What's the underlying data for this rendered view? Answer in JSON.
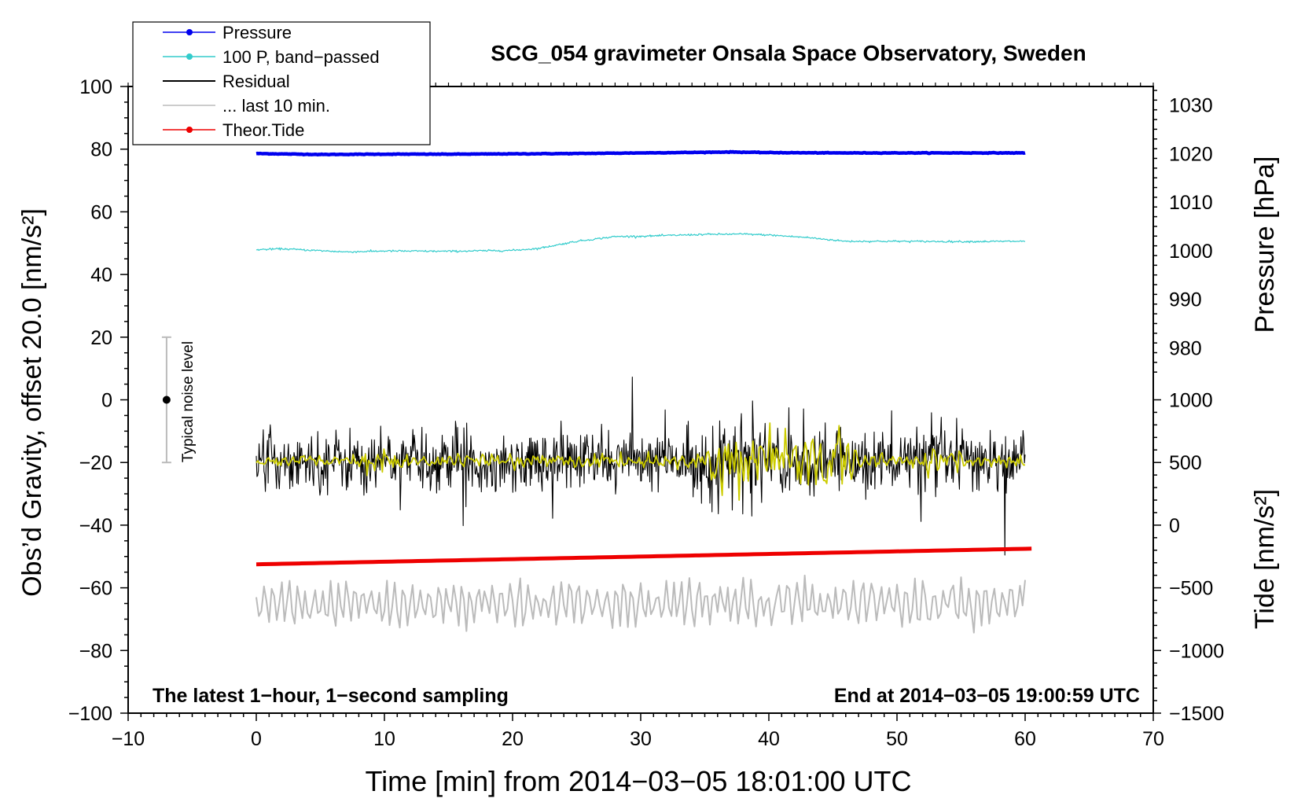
{
  "chart_data": {
    "type": "line",
    "title": "SCG_054 gravimeter Onsala Space Observatory, Sweden",
    "xlabel": "Time [min] from 2014−03−05 18:01:00 UTC",
    "ylabel_left": "Obs’d Gravity, offset 20.0 [nm/s²]",
    "ylabel_pressure": "Pressure [hPa]",
    "ylabel_tide": "Tide [nm/s²]",
    "xlim": [
      -10,
      70
    ],
    "ylim_left": [
      -100,
      100
    ],
    "x_ticks": [
      "−10",
      "0",
      "10",
      "20",
      "30",
      "40",
      "50",
      "60",
      "70"
    ],
    "x_tick_values": [
      -10,
      0,
      10,
      20,
      30,
      40,
      50,
      60,
      70
    ],
    "y_left_ticks": [
      "100",
      "80",
      "60",
      "40",
      "20",
      "0",
      "−20",
      "−40",
      "−60",
      "−80",
      "−100"
    ],
    "y_left_tick_values": [
      100,
      80,
      60,
      40,
      20,
      0,
      -20,
      -40,
      -60,
      -80,
      -100
    ],
    "pressure_ticks": [
      "1030",
      "1020",
      "1010",
      "1000",
      "990",
      "980"
    ],
    "pressure_tick_values": [
      1030,
      1020,
      1010,
      1000,
      990,
      980
    ],
    "pressure_axis": {
      "hpa_ref": 1020,
      "grav_ref": 78.6,
      "grav_per_hpa": 1.55
    },
    "tide_ticks": [
      "1000",
      "500",
      "0",
      "−500",
      "−1000",
      "−1500"
    ],
    "tide_tick_values": [
      1000,
      500,
      0,
      -500,
      -1000,
      -1500
    ],
    "tide_axis": {
      "tide_ref": -1500,
      "grav_ref": -100,
      "grav_per_unit": 0.04
    },
    "annotation_left": "The latest 1−hour, 1−second sampling",
    "annotation_right": "End at 2014−03−05 19:00:59 UTC",
    "noise_label": "Typical noise level",
    "noise_bar": {
      "x": -7,
      "center": 0,
      "half_range": 20
    },
    "legend": [
      {
        "label": "Pressure",
        "color": "#0000ee",
        "marker": true
      },
      {
        "label": "100 P, band−passed",
        "color": "#33cccc",
        "marker": true
      },
      {
        "label": "Residual",
        "color": "#000000",
        "marker": false
      },
      {
        "label": "... last 10 min.",
        "color": "#bbbbbb",
        "marker": false
      },
      {
        "label": "Theor.Tide",
        "color": "#ee0000",
        "marker": true
      }
    ],
    "series": [
      {
        "name": "Pressure",
        "color": "#0000ee",
        "offset_y": 78.7,
        "x": [
          0,
          5,
          10,
          15,
          20,
          25,
          30,
          35,
          37,
          40,
          45,
          50,
          55,
          60
        ],
        "y": [
          78.6,
          78.3,
          78.4,
          78.4,
          78.5,
          78.6,
          78.8,
          79.0,
          79.1,
          78.9,
          78.8,
          78.8,
          78.8,
          78.8
        ]
      },
      {
        "name": "100 P, band−passed",
        "color": "#33cccc",
        "offset_y": 48.0,
        "x": [
          0,
          2,
          5,
          7,
          10,
          15,
          20,
          22,
          25,
          28,
          30,
          35,
          38,
          40,
          43,
          46,
          50,
          55,
          60
        ],
        "y": [
          47.9,
          48.2,
          47.6,
          47.2,
          47.5,
          47.4,
          47.7,
          48.3,
          50.6,
          52.1,
          52.2,
          52.8,
          52.9,
          52.6,
          51.8,
          50.6,
          50.6,
          50.5,
          50.6
        ]
      },
      {
        "name": "Residual",
        "color": "#000000",
        "center": -19.5,
        "amplitude": 6.5,
        "points": 1100
      },
      {
        "name": "Residual, smoothed",
        "color": "#cccc00",
        "center": -19.5,
        "amplitude": 1.5
      },
      {
        "name": "... last 10 min.",
        "color": "#bbbbbb",
        "center": -65,
        "amplitude": 6.5,
        "points": 300
      },
      {
        "name": "Theor.Tide",
        "color": "#ee0000",
        "x": [
          0,
          60.5
        ],
        "y": [
          -52.5,
          -47.5
        ]
      }
    ]
  }
}
